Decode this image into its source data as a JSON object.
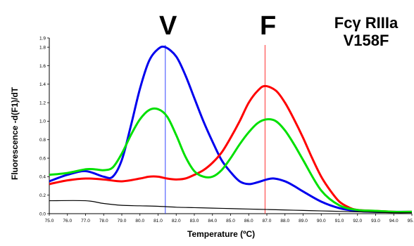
{
  "chart_data": {
    "type": "line",
    "annotations": {
      "peak_v": "V",
      "peak_f": "F",
      "title_line1": "Fcγ RIIIa",
      "title_line2": "V158F"
    },
    "xlabel": "Temperature (ºC)",
    "ylabel": "Fluorescence -d(F1)/dT",
    "xlim": [
      75.0,
      95.0
    ],
    "ylim": [
      0.0,
      1.9
    ],
    "xticks": [
      "75.0",
      "76.0",
      "77.0",
      "78.0",
      "79.0",
      "80.0",
      "81.0",
      "82.0",
      "83.0",
      "84.0",
      "85.0",
      "86.0",
      "87.0",
      "88.0",
      "89.0",
      "90.0",
      "91.0",
      "92.0",
      "93.0",
      "94.0",
      "95.0"
    ],
    "yticks": [
      "0.0",
      "0.2",
      "0.4",
      "0.6",
      "0.8",
      "1.0",
      "1.2",
      "1.4",
      "1.6",
      "1.8",
      "1.9"
    ],
    "vlines": [
      {
        "x": 81.4,
        "color": "#3344ff"
      },
      {
        "x": 86.9,
        "color": "#ff3333"
      }
    ],
    "series": [
      {
        "color": "#0000ee",
        "x": [
          75.0,
          76.0,
          77.0,
          78.0,
          78.5,
          79.0,
          79.5,
          80.0,
          80.5,
          81.0,
          81.4,
          82.0,
          82.5,
          83.0,
          83.5,
          84.0,
          84.5,
          85.0,
          85.5,
          86.0,
          86.5,
          87.0,
          87.4,
          88.0,
          88.5,
          89.0,
          90.0,
          91.0,
          92.0,
          93.0,
          94.0,
          95.0
        ],
        "y": [
          0.35,
          0.42,
          0.46,
          0.4,
          0.4,
          0.58,
          0.95,
          1.35,
          1.65,
          1.78,
          1.8,
          1.7,
          1.5,
          1.25,
          1.0,
          0.78,
          0.58,
          0.45,
          0.35,
          0.32,
          0.34,
          0.37,
          0.38,
          0.35,
          0.3,
          0.24,
          0.13,
          0.06,
          0.03,
          0.02,
          0.02,
          0.02
        ]
      },
      {
        "color": "#ff0000",
        "x": [
          75.0,
          76.0,
          77.0,
          78.0,
          79.0,
          80.0,
          80.5,
          81.0,
          81.5,
          82.0,
          82.5,
          83.0,
          83.5,
          84.0,
          84.5,
          85.0,
          85.5,
          86.0,
          86.5,
          86.9,
          87.5,
          88.0,
          88.5,
          89.0,
          89.5,
          90.0,
          90.5,
          91.0,
          91.5,
          92.0,
          93.0,
          94.0,
          95.0
        ],
        "y": [
          0.32,
          0.36,
          0.38,
          0.37,
          0.35,
          0.38,
          0.4,
          0.4,
          0.38,
          0.37,
          0.38,
          0.42,
          0.47,
          0.55,
          0.66,
          0.82,
          1.0,
          1.2,
          1.33,
          1.38,
          1.33,
          1.2,
          1.02,
          0.82,
          0.6,
          0.4,
          0.25,
          0.13,
          0.07,
          0.04,
          0.03,
          0.02,
          0.02
        ]
      },
      {
        "color": "#00e000",
        "x": [
          75.0,
          76.0,
          77.0,
          77.5,
          78.0,
          78.5,
          79.0,
          79.5,
          80.0,
          80.5,
          81.0,
          81.5,
          82.0,
          82.5,
          83.0,
          83.5,
          84.0,
          84.5,
          85.0,
          85.5,
          86.0,
          86.5,
          87.0,
          87.5,
          88.0,
          88.5,
          89.0,
          90.0,
          91.0,
          92.0,
          93.0,
          94.0,
          95.0
        ],
        "y": [
          0.42,
          0.44,
          0.48,
          0.48,
          0.47,
          0.5,
          0.65,
          0.85,
          1.02,
          1.12,
          1.13,
          1.05,
          0.85,
          0.62,
          0.46,
          0.4,
          0.4,
          0.47,
          0.6,
          0.75,
          0.88,
          0.98,
          1.02,
          1.0,
          0.9,
          0.75,
          0.58,
          0.25,
          0.09,
          0.04,
          0.03,
          0.02,
          0.02
        ]
      },
      {
        "color": "#000000",
        "x": [
          75.0,
          77.0,
          78.0,
          79.0,
          80.0,
          81.0,
          82.0,
          83.0,
          84.0,
          85.0,
          86.0,
          87.0,
          88.0,
          89.0,
          90.0,
          91.0,
          92.0,
          93.0,
          94.0,
          95.0
        ],
        "y": [
          0.14,
          0.14,
          0.11,
          0.09,
          0.085,
          0.08,
          0.07,
          0.065,
          0.06,
          0.055,
          0.05,
          0.045,
          0.04,
          0.035,
          0.03,
          0.025,
          0.02,
          0.015,
          0.01,
          0.01
        ]
      }
    ]
  }
}
